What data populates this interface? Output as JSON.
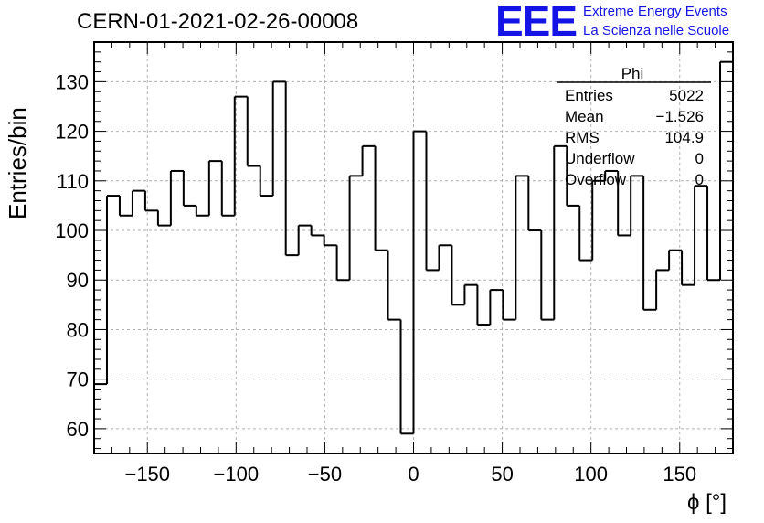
{
  "chart_data": {
    "type": "bar",
    "title": "CERN-01-2021-02-26-00008",
    "xlabel": "ϕ [°]",
    "ylabel": "Entries/bin",
    "xlim": [
      -180,
      180
    ],
    "ylim": [
      55,
      138
    ],
    "grid": true,
    "histogram_style": "step",
    "bin_width": 7.2,
    "x_ticks": [
      -150,
      -100,
      -50,
      0,
      50,
      100,
      150
    ],
    "x_tick_labels": [
      "−150",
      "−100",
      "−50",
      "0",
      "50",
      "100",
      "150"
    ],
    "y_ticks": [
      60,
      70,
      80,
      90,
      100,
      110,
      120,
      130
    ],
    "y_tick_labels": [
      "60",
      "70",
      "80",
      "90",
      "100",
      "110",
      "120",
      "130"
    ],
    "bin_centers": [
      -176.4,
      -169.2,
      -162,
      -154.8,
      -147.6,
      -140.4,
      -133.2,
      -126,
      -118.8,
      -111.6,
      -104.4,
      -97.2,
      -90,
      -82.8,
      -75.6,
      -68.4,
      -61.2,
      -54,
      -46.8,
      -39.6,
      -32.4,
      -25.2,
      -18,
      -10.8,
      -3.6,
      3.6,
      10.8,
      18,
      25.2,
      32.4,
      39.6,
      46.8,
      54,
      61.2,
      68.4,
      75.6,
      82.8,
      90,
      97.2,
      104.4,
      111.6,
      118.8,
      126,
      133.2,
      140.4,
      147.6,
      154.8,
      162,
      169.2,
      176.4
    ],
    "values": [
      69,
      107,
      103,
      108,
      104,
      101,
      112,
      105,
      103,
      114,
      103,
      127,
      113,
      107,
      130,
      95,
      101,
      99,
      97,
      90,
      111,
      117,
      96,
      82,
      59,
      120,
      92,
      97,
      85,
      89,
      81,
      88,
      82,
      111,
      100,
      82,
      117,
      105,
      94,
      110,
      112,
      99,
      111,
      84,
      92,
      96,
      89,
      109,
      90,
      134
    ],
    "stats_box": {
      "name": "Phi",
      "rows": [
        {
          "label": "Entries",
          "value": "5022"
        },
        {
          "label": "Mean",
          "value": "−1.526"
        },
        {
          "label": "RMS",
          "value": "104.9"
        },
        {
          "label": "Underflow",
          "value": "0"
        },
        {
          "label": "Overflow",
          "value": "0"
        }
      ]
    },
    "colors": {
      "line": "#000000",
      "grid": "#b0b0b0",
      "brand": "#1414e6"
    }
  },
  "branding": {
    "logo": "EEE",
    "line1": "Extreme Energy Events",
    "line2": "La Scienza nelle Scuole"
  }
}
